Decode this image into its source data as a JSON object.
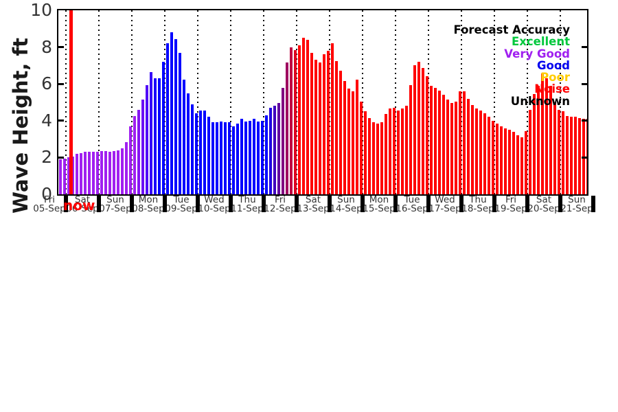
{
  "chart_data": {
    "type": "bar",
    "title": "",
    "ylabel": "Wave Height, ft",
    "xlabel": "",
    "ylim": [
      0,
      10
    ],
    "yticks": [
      "0",
      "2",
      "4",
      "6",
      "8",
      "10"
    ],
    "grid": {
      "vertical_dotted_day_boundaries": true,
      "horizontal": false
    },
    "now_marker": {
      "label": "now",
      "color": "#FF0000"
    },
    "legend": {
      "title": "Forecast Accuracy",
      "position": "top-right",
      "title_color": "#000000",
      "entries": [
        {
          "label": "Excellent",
          "color": "#00C83C"
        },
        {
          "label": "Very Good",
          "color": "#A020F0"
        },
        {
          "label": "Good",
          "color": "#0000EE"
        },
        {
          "label": "Poor",
          "color": "#FFCD00"
        },
        {
          "label": "Noise",
          "color": "#FF0000"
        },
        {
          "label": "Unknown",
          "color": "#000000"
        }
      ]
    },
    "x_days": [
      {
        "dow": "Fri",
        "date": "05-Sep"
      },
      {
        "dow": "Sat",
        "date": "06-Sep"
      },
      {
        "dow": "Sun",
        "date": "07-Sep"
      },
      {
        "dow": "Mon",
        "date": "08-Sep"
      },
      {
        "dow": "Tue",
        "date": "09-Sep"
      },
      {
        "dow": "Wed",
        "date": "10-Sep"
      },
      {
        "dow": "Thu",
        "date": "11-Sep"
      },
      {
        "dow": "Fri",
        "date": "12-Sep"
      },
      {
        "dow": "Sat",
        "date": "13-Sep"
      },
      {
        "dow": "Sun",
        "date": "14-Sep"
      },
      {
        "dow": "Mon",
        "date": "15-Sep"
      },
      {
        "dow": "Tue",
        "date": "16-Sep"
      },
      {
        "dow": "Wed",
        "date": "17-Sep"
      },
      {
        "dow": "Thu",
        "date": "18-Sep"
      },
      {
        "dow": "Fri",
        "date": "19-Sep"
      },
      {
        "dow": "Sat",
        "date": "20-Sep"
      },
      {
        "dow": "Sun",
        "date": "21-Sep"
      }
    ],
    "bars_per_day": 8,
    "series": [
      {
        "name": "Wave Height",
        "unit": "ft",
        "heights_ft": [
          1.9,
          1.95,
          2.0,
          2.05,
          2.2,
          2.25,
          2.3,
          2.3,
          2.3,
          2.3,
          2.35,
          2.35,
          2.3,
          2.35,
          2.4,
          2.5,
          2.85,
          3.7,
          4.25,
          4.6,
          5.15,
          5.95,
          6.65,
          6.3,
          6.3,
          7.2,
          8.2,
          8.8,
          8.45,
          7.7,
          6.25,
          5.5,
          4.9,
          4.4,
          4.55,
          4.55,
          4.2,
          3.9,
          3.9,
          3.95,
          3.9,
          3.9,
          3.7,
          3.85,
          4.1,
          3.95,
          4.0,
          4.1,
          3.95,
          4.0,
          4.3,
          4.7,
          4.8,
          4.95,
          5.8,
          7.15,
          8.0,
          7.85,
          8.1,
          8.5,
          8.4,
          7.7,
          7.3,
          7.15,
          7.6,
          7.8,
          8.2,
          7.25,
          6.7,
          6.15,
          5.75,
          5.6,
          6.25,
          5.05,
          4.5,
          4.15,
          3.9,
          3.85,
          3.9,
          4.35,
          4.65,
          4.7,
          4.55,
          4.65,
          4.8,
          5.95,
          7.0,
          7.2,
          6.85,
          6.4,
          5.9,
          5.8,
          5.65,
          5.4,
          5.15,
          4.95,
          5.05,
          5.6,
          5.6,
          5.2,
          4.85,
          4.65,
          4.55,
          4.4,
          4.2,
          4.0,
          3.85,
          3.7,
          3.6,
          3.5,
          3.4,
          3.2,
          3.1,
          3.45,
          4.6,
          5.45,
          5.9,
          6.55,
          6.3,
          5.9,
          5.0,
          4.6,
          4.5,
          4.25,
          4.2,
          4.2,
          4.15,
          4.1,
          4.1
        ],
        "colors": [
          "#A020F0",
          "#A020F0",
          "#A020F0",
          "#A020F0",
          "#A020F0",
          "#A020F0",
          "#A020F0",
          "#A020F0",
          "#A020F0",
          "#A020F0",
          "#A020F0",
          "#A020F0",
          "#A020F0",
          "#A020F0",
          "#A020F0",
          "#A020F0",
          "#A020F0",
          "#A020F0",
          "#A020F0",
          "#8515F2",
          "#6B10F4",
          "#500BF7",
          "#3507F9",
          "#1B03FC",
          "#0000FF",
          "#0000FF",
          "#0000FF",
          "#0000FF",
          "#0000FF",
          "#0000FF",
          "#0000FF",
          "#0000FF",
          "#0000FF",
          "#0000FF",
          "#0000FF",
          "#0000FF",
          "#0000FF",
          "#0000FF",
          "#0000FF",
          "#0000FF",
          "#0000FF",
          "#0000FF",
          "#0000FF",
          "#0000FF",
          "#0000FF",
          "#0000FF",
          "#0000FF",
          "#0000FF",
          "#0000FF",
          "#0000FF",
          "#0000FF",
          "#2000DF",
          "#4000BF",
          "#60009F",
          "#800080",
          "#9F0060",
          "#BF0040",
          "#DF0020",
          "#FF0000",
          "#FF0000",
          "#FF0000",
          "#FF0000",
          "#FF0000",
          "#FF0000",
          "#FF0000",
          "#FF0000",
          "#FF0000",
          "#FF0000",
          "#FF0000",
          "#FF0000",
          "#FF0000",
          "#FF0000",
          "#FF0000",
          "#FF0000",
          "#FF0000",
          "#FF0000",
          "#FF0000",
          "#FF0000",
          "#FF0000",
          "#FF0000",
          "#FF0000",
          "#FF0000",
          "#FF0000",
          "#FF0000",
          "#FF0000",
          "#FF0000",
          "#FF0000",
          "#FF0000",
          "#FF0000",
          "#FF0000",
          "#FF0000",
          "#FF0000",
          "#FF0000",
          "#FF0000",
          "#FF0000",
          "#FF0000",
          "#FF0000",
          "#FF0000",
          "#FF0000",
          "#FF0000",
          "#FF0000",
          "#FF0000",
          "#FF0000",
          "#FF0000",
          "#FF0000",
          "#FF0000",
          "#FF0000",
          "#FF0000",
          "#FF0000",
          "#FF0000",
          "#FF0000",
          "#FF0000",
          "#FF0000",
          "#FF0000",
          "#FF0000",
          "#FF0000",
          "#FF0000",
          "#FF0000",
          "#FF0000",
          "#FF0000",
          "#FF0000",
          "#FF0000",
          "#FF0000",
          "#FF0000",
          "#FF0000",
          "#FF0000",
          "#FF0000",
          "#FF0000",
          "#FF0000"
        ]
      }
    ]
  }
}
